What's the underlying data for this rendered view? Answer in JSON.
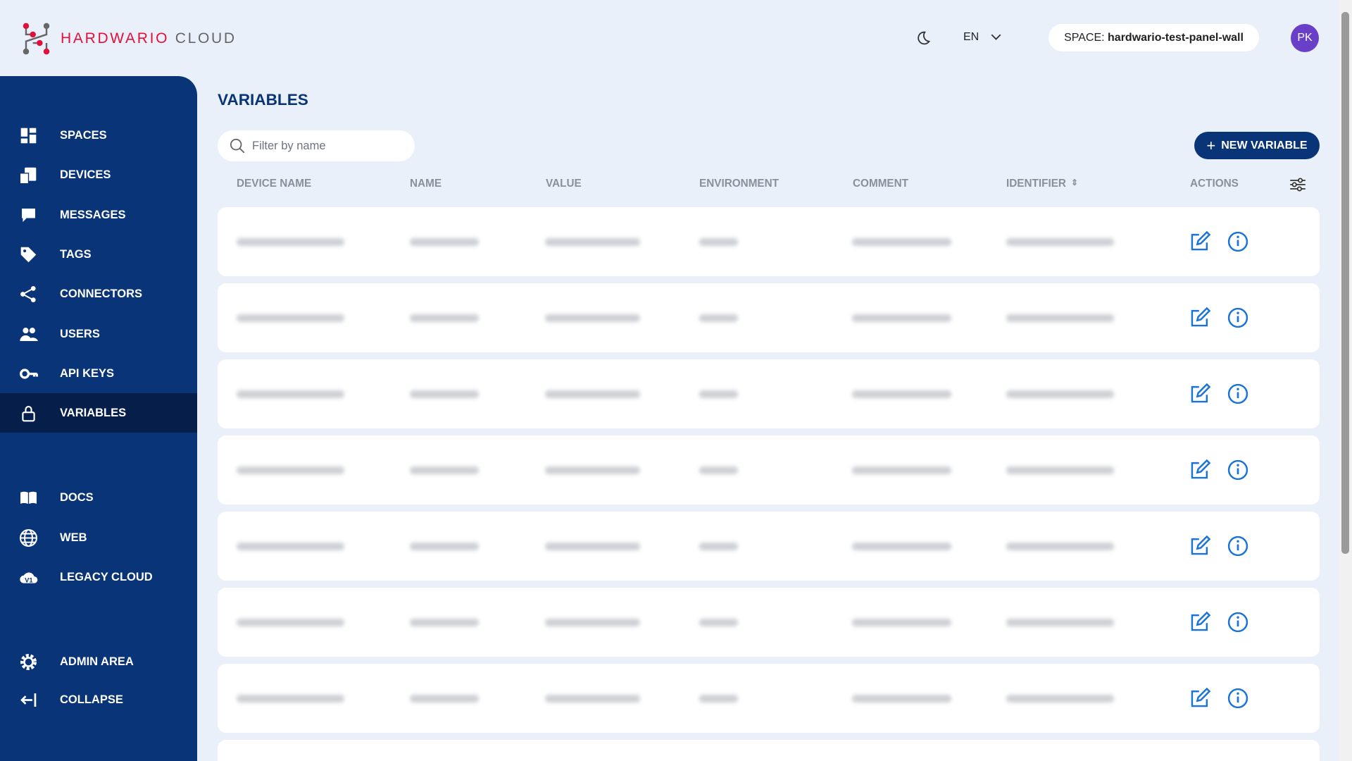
{
  "brand": {
    "name_a": "HARDWARIO",
    "name_b": "CLOUD"
  },
  "header": {
    "language": "EN",
    "space_label": "SPACE:",
    "space_value": "hardwario-test-panel-wall",
    "avatar": "PK"
  },
  "sidebar": {
    "items": [
      {
        "label": "SPACES",
        "icon": "dashboard-icon"
      },
      {
        "label": "DEVICES",
        "icon": "devices-icon"
      },
      {
        "label": "MESSAGES",
        "icon": "messages-icon"
      },
      {
        "label": "TAGS",
        "icon": "tags-icon"
      },
      {
        "label": "CONNECTORS",
        "icon": "share-icon"
      },
      {
        "label": "USERS",
        "icon": "users-icon"
      },
      {
        "label": "API KEYS",
        "icon": "key-icon"
      },
      {
        "label": "VARIABLES",
        "icon": "lock-icon",
        "active": true
      },
      {
        "label": "DOCS",
        "icon": "book-icon"
      },
      {
        "label": "WEB",
        "icon": "globe-icon"
      },
      {
        "label": "LEGACY CLOUD",
        "icon": "cloud-v1-icon"
      },
      {
        "label": "ADMIN AREA",
        "icon": "gear-icon"
      },
      {
        "label": "COLLAPSE",
        "icon": "collapse-icon"
      }
    ]
  },
  "main": {
    "title": "VARIABLES",
    "search_placeholder": "Filter by name",
    "new_button": "NEW VARIABLE",
    "columns": [
      "DEVICE NAME",
      "NAME",
      "VALUE",
      "ENVIRONMENT",
      "COMMENT",
      "IDENTIFIER",
      "ACTIONS"
    ],
    "accent": "#1a73d9"
  }
}
